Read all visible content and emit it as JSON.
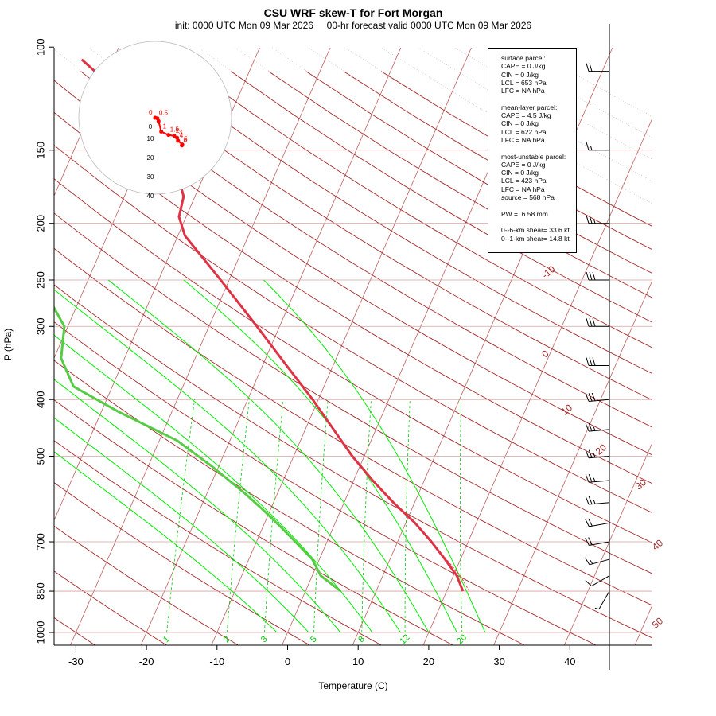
{
  "title": "CSU WRF skew-T for Fort Morgan",
  "subtitle": "init: 0000 UTC Mon 09 Mar 2026     00-hr forecast valid 0000 UTC Mon 09 Mar 2026",
  "colors": {
    "isotherm": "#a52a2a",
    "isobar": "#b22222",
    "dry_adiabat": "#b89090",
    "moist_adiabat": "#00ee00",
    "mixing_ratio": "#00cc00",
    "temperature": "#dd3344",
    "dewpoint": "#55cc44",
    "hodograph": "#ff0000",
    "wind": "#000000"
  },
  "chart_data": {
    "type": "skew-t log-p",
    "xlabel": "Temperature (C)",
    "ylabel": "P (hPa)",
    "x_ticks": [
      -30,
      -20,
      -10,
      0,
      10,
      20,
      30,
      40
    ],
    "x_range": [
      -33,
      45
    ],
    "y_ticks": [
      100,
      150,
      200,
      250,
      300,
      400,
      500,
      700,
      850,
      1000
    ],
    "y_range": [
      100,
      1000
    ],
    "y_scale": "log",
    "isotherm_labels": [
      -10,
      0,
      10,
      20,
      30,
      40,
      50
    ],
    "mixing_ratio_labels": [
      "1",
      "2",
      "3",
      "5",
      "8",
      "12",
      "20"
    ],
    "mixing_ratio_values": [
      1,
      2,
      3,
      5,
      8,
      12,
      20
    ],
    "temperature_profile": [
      {
        "p": 850,
        "t": 22.3
      },
      {
        "p": 800,
        "t": 20.5
      },
      {
        "p": 750,
        "t": 17.8
      },
      {
        "p": 700,
        "t": 14.8
      },
      {
        "p": 650,
        "t": 11.3
      },
      {
        "p": 600,
        "t": 7.0
      },
      {
        "p": 550,
        "t": 2.7
      },
      {
        "p": 500,
        "t": -1.7
      },
      {
        "p": 450,
        "t": -6.0
      },
      {
        "p": 400,
        "t": -10.8
      },
      {
        "p": 350,
        "t": -16.6
      },
      {
        "p": 300,
        "t": -23.2
      },
      {
        "p": 250,
        "t": -31.2
      },
      {
        "p": 210,
        "t": -39.0
      },
      {
        "p": 195,
        "t": -41.0
      },
      {
        "p": 180,
        "t": -41.6
      },
      {
        "p": 165,
        "t": -43.8
      },
      {
        "p": 150,
        "t": -45.8
      },
      {
        "p": 140,
        "t": -49.2
      },
      {
        "p": 120,
        "t": -57.0
      },
      {
        "p": 105,
        "t": -64.5
      }
    ],
    "parcel_profile": [
      {
        "p": 850,
        "t": 23.2
      },
      {
        "p": 800,
        "t": 21.0
      },
      {
        "p": 750,
        "t": 18.0
      },
      {
        "p": 700,
        "t": 14.8
      }
    ],
    "dewpoint_profile": [
      {
        "p": 850,
        "t": 5.0
      },
      {
        "p": 800,
        "t": 1.2
      },
      {
        "p": 750,
        "t": -1.0
      },
      {
        "p": 700,
        "t": -4.5
      },
      {
        "p": 660,
        "t": -7.5
      },
      {
        "p": 620,
        "t": -10.8
      },
      {
        "p": 580,
        "t": -14.5
      },
      {
        "p": 520,
        "t": -21.0
      },
      {
        "p": 470,
        "t": -27.5
      },
      {
        "p": 420,
        "t": -37.5
      },
      {
        "p": 380,
        "t": -45.5
      },
      {
        "p": 340,
        "t": -49.0
      },
      {
        "p": 300,
        "t": -50.5
      },
      {
        "p": 250,
        "t": -57.0
      },
      {
        "p": 210,
        "t": -64.5
      },
      {
        "p": 180,
        "t": -70.0
      }
    ],
    "wind_barbs": [
      {
        "p": 850,
        "dir": 210,
        "kt": 5
      },
      {
        "p": 800,
        "dir": 240,
        "kt": 10
      },
      {
        "p": 750,
        "dir": 255,
        "kt": 15
      },
      {
        "p": 700,
        "dir": 260,
        "kt": 20
      },
      {
        "p": 650,
        "dir": 260,
        "kt": 20
      },
      {
        "p": 600,
        "dir": 265,
        "kt": 25
      },
      {
        "p": 550,
        "dir": 265,
        "kt": 25
      },
      {
        "p": 500,
        "dir": 265,
        "kt": 25
      },
      {
        "p": 450,
        "dir": 265,
        "kt": 25
      },
      {
        "p": 400,
        "dir": 265,
        "kt": 30
      },
      {
        "p": 350,
        "dir": 270,
        "kt": 30
      },
      {
        "p": 300,
        "dir": 270,
        "kt": 30
      },
      {
        "p": 250,
        "dir": 270,
        "kt": 30
      },
      {
        "p": 200,
        "dir": 270,
        "kt": 25
      },
      {
        "p": 150,
        "dir": 270,
        "kt": 15
      },
      {
        "p": 110,
        "dir": 270,
        "kt": 20
      }
    ],
    "hodograph": {
      "ring_labels": [
        "0",
        "10",
        "20",
        "30",
        "40"
      ],
      "ring_values": [
        0,
        10,
        20,
        30,
        40
      ],
      "points": [
        {
          "u": 0.0,
          "v": 0.0,
          "label": "0"
        },
        {
          "u": 1.2,
          "v": -0.3,
          "label": "0.5"
        },
        {
          "u": 1.8,
          "v": -1.8,
          "label": ""
        },
        {
          "u": 3.2,
          "v": -7.3,
          "label": "1"
        },
        {
          "u": 7.0,
          "v": -9.0,
          "label": "1.5"
        },
        {
          "u": 10.0,
          "v": -9.5,
          "label": "2"
        },
        {
          "u": 11.5,
          "v": -10.5,
          "label": "3"
        },
        {
          "u": 12.0,
          "v": -12.0,
          "label": "4"
        },
        {
          "u": 14.2,
          "v": -14.0,
          "label": "5"
        },
        {
          "u": 14.0,
          "v": -14.5,
          "label": "6"
        }
      ]
    }
  },
  "info": {
    "surface": [
      "surface parcel:",
      "CAPE = 0 J/kg",
      "CIN = 0 J/kg",
      "LCL = 653 hPa",
      "LFC = NA hPa"
    ],
    "mean_layer": [
      "mean-layer parcel:",
      "CAPE = 4.5 J/kg",
      "CIN = 0 J/kg",
      "LCL = 622 hPa",
      "LFC = NA hPa"
    ],
    "most_unstable": [
      "most-unstable parcel:",
      "CAPE = 0 J/kg",
      "CIN = 0 J/kg",
      "LCL = 423 hPa",
      "LFC = NA hPa",
      "source = 568 hPa"
    ],
    "pw": "PW =  6.58 mm",
    "shear": [
      "0--6-km shear= 33.6 kt",
      "0--1-km shear= 14.8 kt"
    ]
  }
}
